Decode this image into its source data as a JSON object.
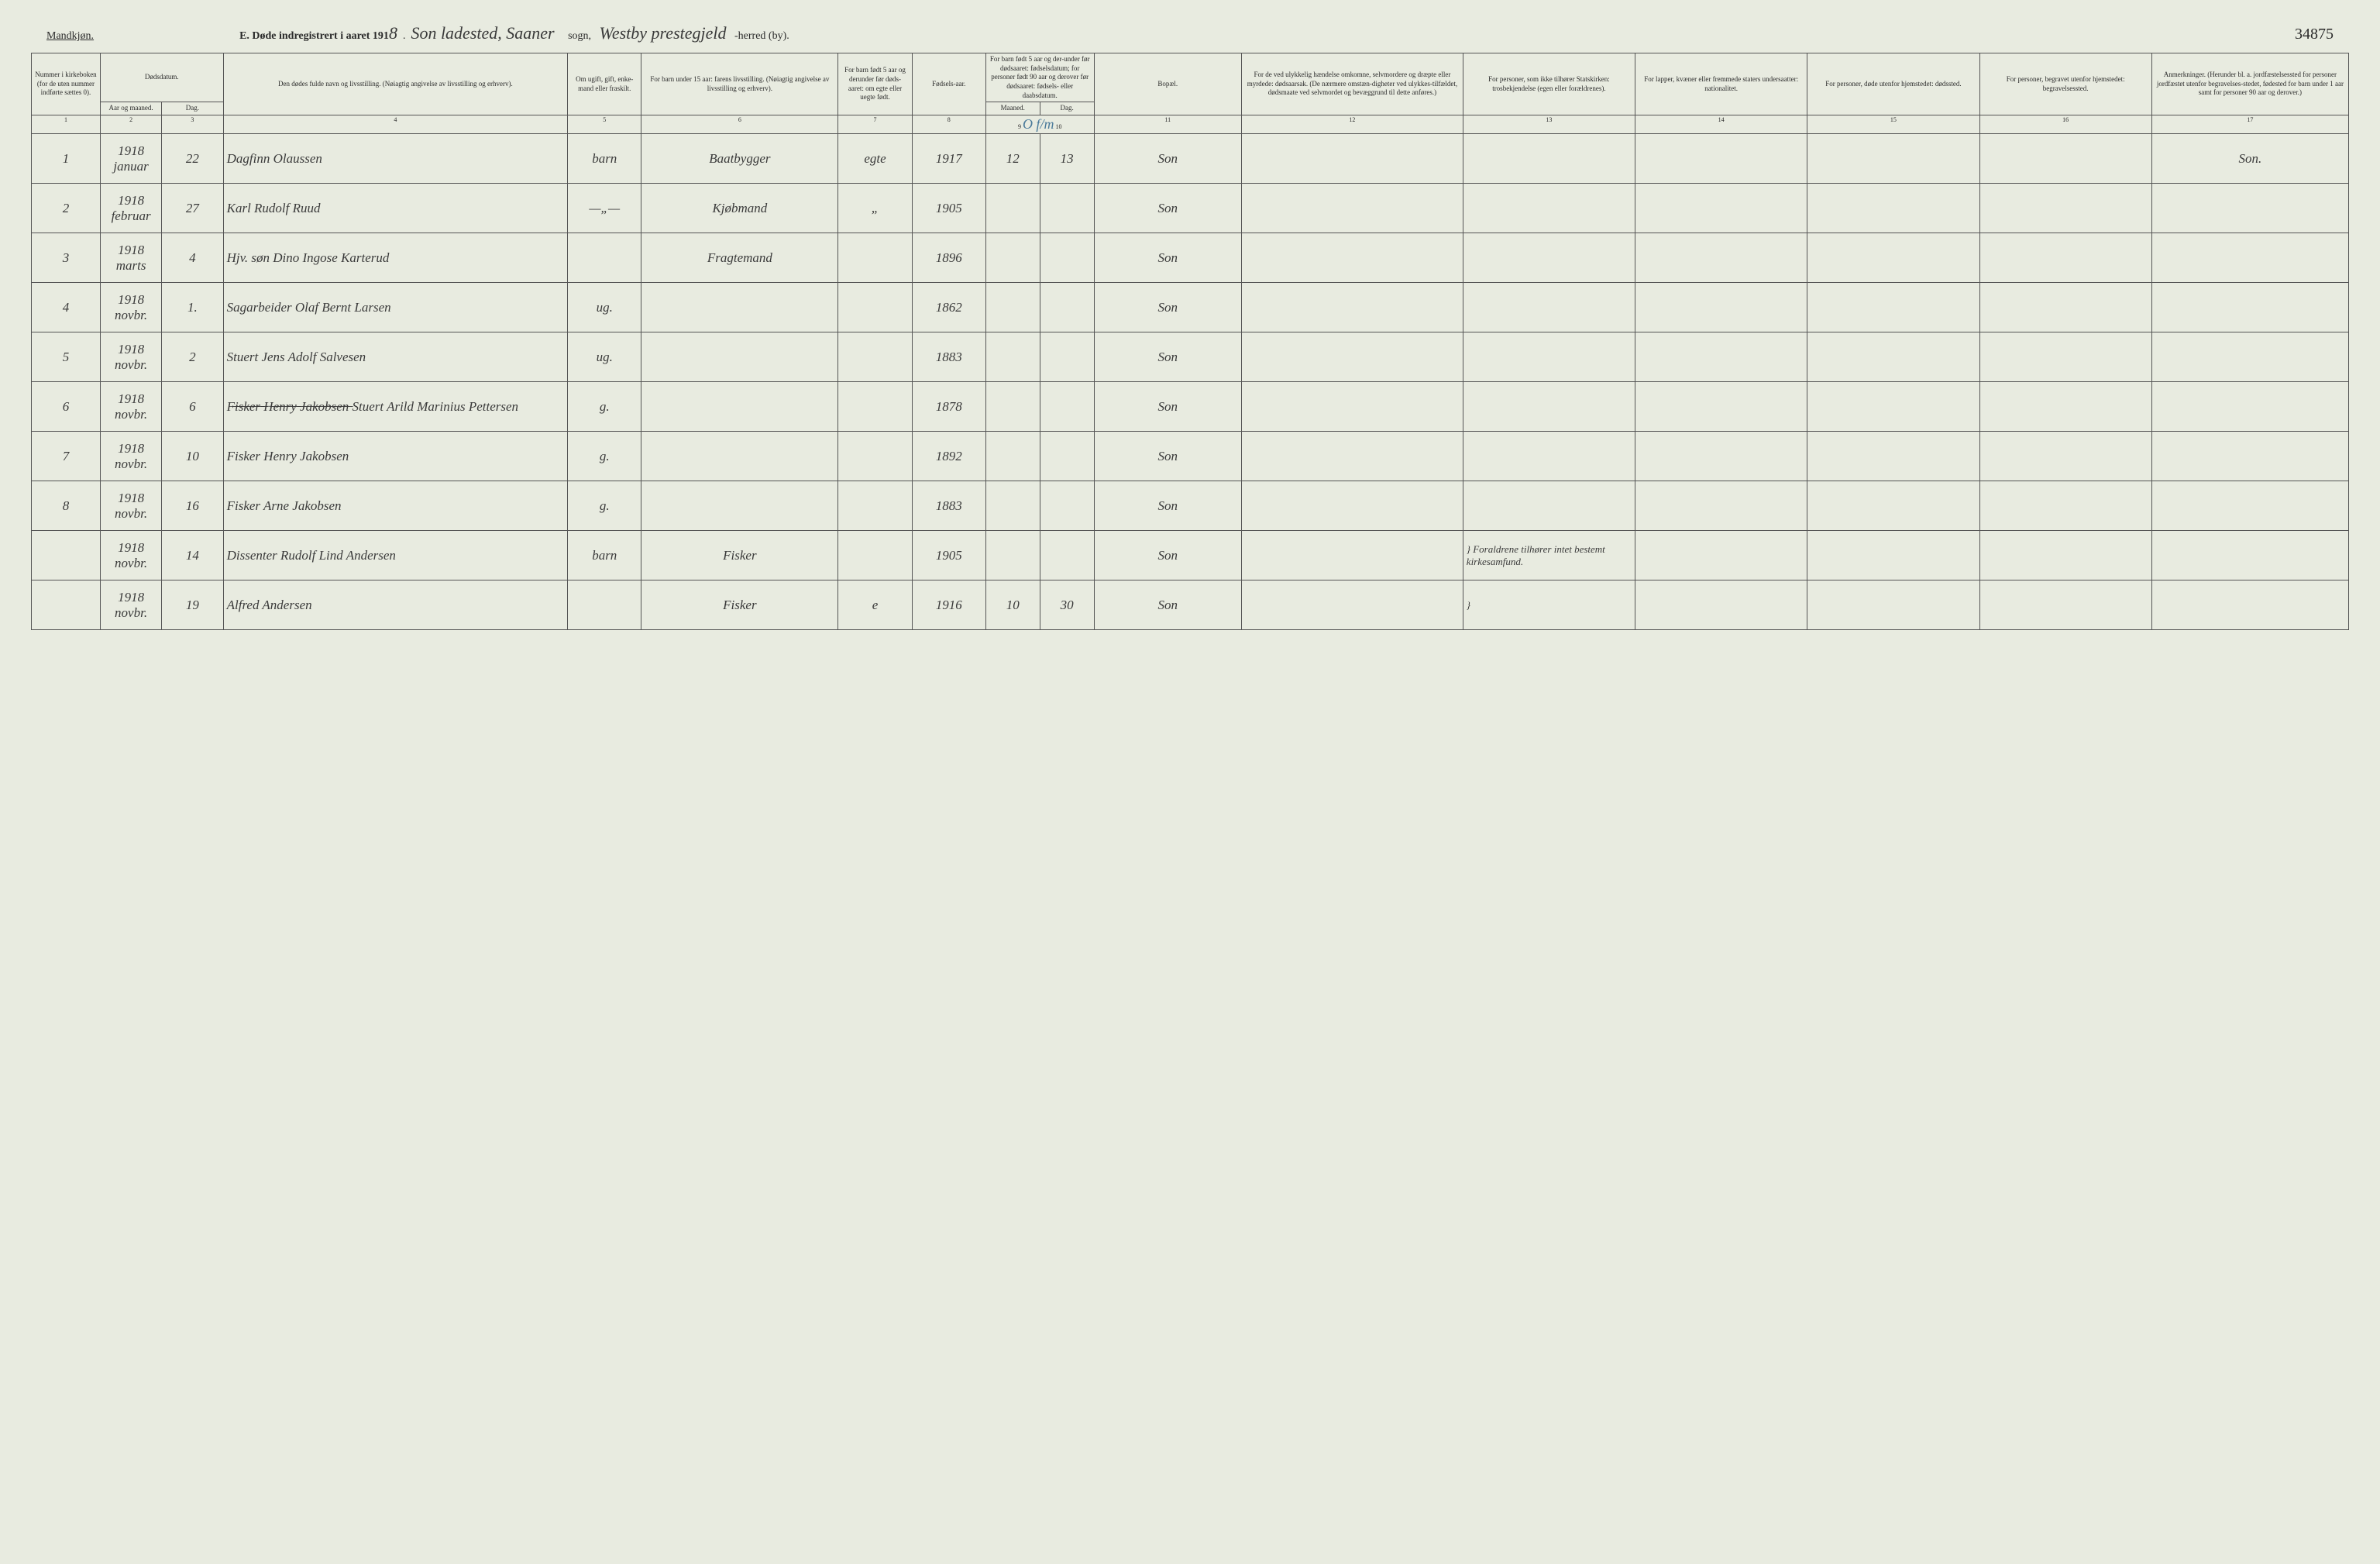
{
  "header": {
    "gender": "Mandkjøn.",
    "title_prefix": "E.  Døde indregistrert i aaret 191",
    "year_suffix": "8",
    "place": "Son ladested, Saaner",
    "sogn_label": "sogn,",
    "prestegjeld": "Westby prestegjeld",
    "herred_label": "-herred (by).",
    "page_number": "34875"
  },
  "columns": {
    "c1": "Nummer i kirkeboken (for de uten nummer indførte sættes 0).",
    "c2": "Dødsdatum.",
    "c2a": "Aar og maaned.",
    "c2b": "Dag.",
    "c4": "Den dødes fulde navn og livsstilling.\n(Nøiagtig angivelse av livsstilling og erhverv).",
    "c5": "Om ugift, gift, enke-mand eller fraskilt.",
    "c6": "For barn under 15 aar:\nfarens livsstilling.\n(Nøiagtig angivelse av livsstilling og erhverv).",
    "c7": "For barn født 5 aar og derunder før døds-aaret: om egte eller uegte født.",
    "c8": "Fødsels-aar.",
    "c9": "For barn født 5 aar og der-under før dødsaaret: fødselsdatum; for personer født 90 aar og derover før dødsaaret: fødsels- eller daabsdatum.",
    "c9a": "Maaned.",
    "c9b": "Dag.",
    "c11": "Bopæl.",
    "c12": "For de ved ulykkelig hændelse omkomne, selvmordere og dræpte eller myrdede: dødsaarsak. (De nærmere omstæn-digheter ved ulykkes-tilfældet, dødsmaate ved selvmordet og bevæggrund til dette anføres.)",
    "c13": "For personer, som ikke tilhører Statskirken: trosbekjendelse (egen eller forældrenes).",
    "c14": "For lapper, kvæner eller fremmede staters undersaatter: nationalitet.",
    "c15": "For personer, døde utenfor hjemstedet: dødssted.",
    "c16": "For personer, begravet utenfor hjemstedet: begravelsessted.",
    "c17": "Anmerkninger. (Herunder bl. a. jordfæstelsessted for personer jordfæstet utenfor begravelses-stedet, fødested for barn under 1 aar samt for personer 90 aar og derover.)"
  },
  "colnums": [
    "1",
    "2",
    "3",
    "4",
    "5",
    "6",
    "7",
    "8",
    "9",
    "10",
    "11",
    "12",
    "13",
    "14",
    "15",
    "16",
    "17"
  ],
  "annotation": "O f/m",
  "rows": [
    {
      "num": "1",
      "aar": "1918 januar",
      "dag": "22",
      "navn": "Dagfinn Olaussen",
      "ugift": "barn",
      "farens": "Baatbygger",
      "egte": "egte",
      "fodsel": "1917",
      "maaned": "12",
      "dag2": "13",
      "bopael": "Son",
      "ulykke": "",
      "stats": "",
      "lapper": "",
      "dodsted": "",
      "begrav": "",
      "anm": "Son."
    },
    {
      "num": "2",
      "aar": "1918 februar",
      "dag": "27",
      "navn": "Karl Rudolf Ruud",
      "ugift": "—„—",
      "farens": "Kjøbmand",
      "egte": "„",
      "fodsel": "1905",
      "maaned": "",
      "dag2": "",
      "bopael": "Son",
      "ulykke": "",
      "stats": "",
      "lapper": "",
      "dodsted": "",
      "begrav": "",
      "anm": ""
    },
    {
      "num": "3",
      "aar": "1918 marts",
      "dag": "4",
      "navn": "Hjv. søn Dino Ingose Karterud",
      "ugift": "",
      "farens": "Fragtemand",
      "egte": "",
      "fodsel": "1896",
      "maaned": "",
      "dag2": "",
      "bopael": "Son",
      "ulykke": "",
      "stats": "",
      "lapper": "",
      "dodsted": "",
      "begrav": "",
      "anm": ""
    },
    {
      "num": "4",
      "aar": "1918 novbr.",
      "dag": "1.",
      "navn": "Sagarbeider Olaf Bernt Larsen",
      "ugift": "ug.",
      "farens": "",
      "egte": "",
      "fodsel": "1862",
      "maaned": "",
      "dag2": "",
      "bopael": "Son",
      "ulykke": "",
      "stats": "",
      "lapper": "",
      "dodsted": "",
      "begrav": "",
      "anm": ""
    },
    {
      "num": "5",
      "aar": "1918 novbr.",
      "dag": "2",
      "navn": "Stuert Jens Adolf Salvesen",
      "ugift": "ug.",
      "farens": "",
      "egte": "",
      "fodsel": "1883",
      "maaned": "",
      "dag2": "",
      "bopael": "Son",
      "ulykke": "",
      "stats": "",
      "lapper": "",
      "dodsted": "",
      "begrav": "",
      "anm": ""
    },
    {
      "num": "6",
      "aar": "1918 novbr.",
      "dag": "6",
      "navn": "F̶i̶s̶k̶e̶r̶ ̶H̶e̶n̶r̶y̶ ̶J̶a̶k̶o̶b̶s̶e̶n̶ Stuert Arild Marinius Pettersen",
      "ugift": "g.",
      "farens": "",
      "egte": "",
      "fodsel": "1878",
      "maaned": "",
      "dag2": "",
      "bopael": "Son",
      "ulykke": "",
      "stats": "",
      "lapper": "",
      "dodsted": "",
      "begrav": "",
      "anm": ""
    },
    {
      "num": "7",
      "aar": "1918 novbr.",
      "dag": "10",
      "navn": "Fisker Henry Jakobsen",
      "ugift": "g.",
      "farens": "",
      "egte": "",
      "fodsel": "1892",
      "maaned": "",
      "dag2": "",
      "bopael": "Son",
      "ulykke": "",
      "stats": "",
      "lapper": "",
      "dodsted": "",
      "begrav": "",
      "anm": ""
    },
    {
      "num": "8",
      "aar": "1918 novbr.",
      "dag": "16",
      "navn": "Fisker Arne Jakobsen",
      "ugift": "g.",
      "farens": "",
      "egte": "",
      "fodsel": "1883",
      "maaned": "",
      "dag2": "",
      "bopael": "Son",
      "ulykke": "",
      "stats": "",
      "lapper": "",
      "dodsted": "",
      "begrav": "",
      "anm": ""
    },
    {
      "num": "",
      "aar": "1918 novbr.",
      "dag": "14",
      "navn": "Dissenter Rudolf Lind Andersen",
      "ugift": "barn",
      "farens": "Fisker",
      "egte": "",
      "fodsel": "1905",
      "maaned": "",
      "dag2": "",
      "bopael": "Son",
      "ulykke": "",
      "stats": "} Foraldrene tilhører intet bestemt kirkesamfund.",
      "lapper": "",
      "dodsted": "",
      "begrav": "",
      "anm": ""
    },
    {
      "num": "",
      "aar": "1918 novbr.",
      "dag": "19",
      "navn": "Alfred Andersen",
      "ugift": "",
      "farens": "Fisker",
      "egte": "e",
      "fodsel": "1916",
      "maaned": "10",
      "dag2": "30",
      "bopael": "Son",
      "ulykke": "",
      "stats": "}",
      "lapper": "",
      "dodsted": "",
      "begrav": "",
      "anm": ""
    }
  ]
}
